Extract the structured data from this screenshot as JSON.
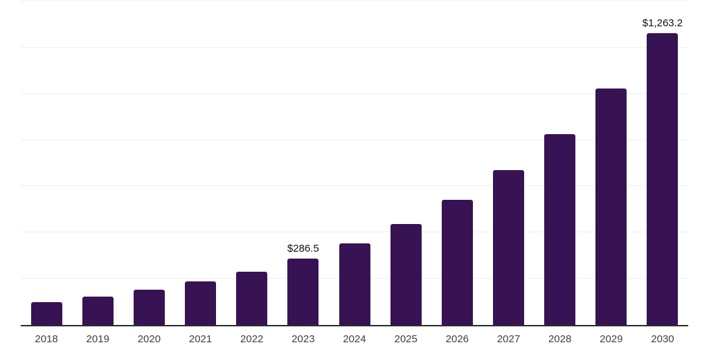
{
  "chart_data": {
    "type": "bar",
    "title": "",
    "xlabel": "",
    "ylabel": "",
    "categories": [
      "2018",
      "2019",
      "2020",
      "2021",
      "2022",
      "2023",
      "2024",
      "2025",
      "2026",
      "2027",
      "2028",
      "2029",
      "2030"
    ],
    "values": [
      99.3,
      122.7,
      151.7,
      187.5,
      231.8,
      286.5,
      354.1,
      437.7,
      541.1,
      668.8,
      826.7,
      1021.9,
      1263.2
    ],
    "bar_labels": [
      "",
      "",
      "",
      "",
      "",
      "$286.5",
      "",
      "",
      "",
      "",
      "",
      "",
      "$1,263.2"
    ],
    "ylim": [
      0,
      1400
    ],
    "gridline_step": 200,
    "grid": true,
    "legend": false,
    "y_tick_labels_shown": false,
    "colors": {
      "bar": "#371353",
      "gridline": "#efefef",
      "axis_line": "#2b2b2b",
      "tick_label": "#3f3f3f",
      "data_label": "#111111",
      "background": "#ffffff"
    }
  }
}
